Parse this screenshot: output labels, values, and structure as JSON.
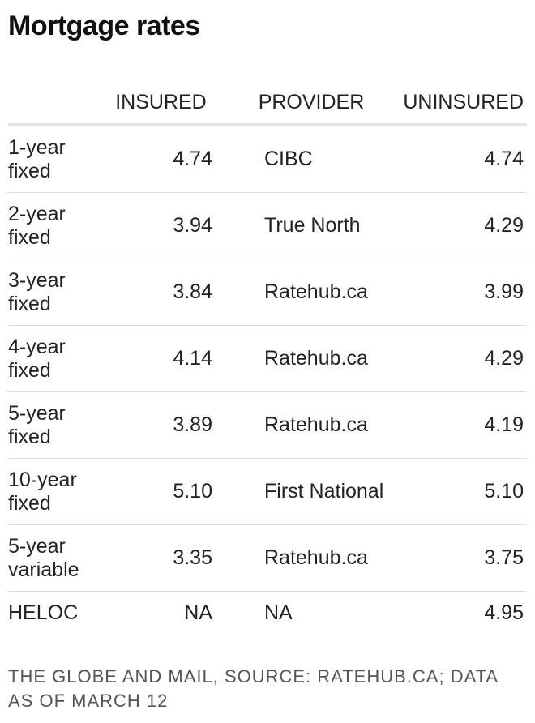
{
  "title": "Mortgage rates",
  "headers": {
    "term": "",
    "insured": "INSURED",
    "provider": "PROVIDER",
    "uninsured": "UNINSURED"
  },
  "rows": [
    {
      "term": "1-year fixed",
      "insured": "4.74",
      "provider": "CIBC",
      "uninsured": "4.74"
    },
    {
      "term": "2-year fixed",
      "insured": "3.94",
      "provider": "True North",
      "uninsured": "4.29"
    },
    {
      "term": "3-year fixed",
      "insured": "3.84",
      "provider": "Ratehub.ca",
      "uninsured": "3.99"
    },
    {
      "term": "4-year fixed",
      "insured": "4.14",
      "provider": "Ratehub.ca",
      "uninsured": "4.29"
    },
    {
      "term": "5-year fixed",
      "insured": "3.89",
      "provider": "Ratehub.ca",
      "uninsured": "4.19"
    },
    {
      "term": "10-year fixed",
      "insured": "5.10",
      "provider": "First National",
      "uninsured": "5.10"
    },
    {
      "term": "5-year variable",
      "insured": "3.35",
      "provider": "Ratehub.ca",
      "uninsured": "3.75"
    },
    {
      "term": "HELOC",
      "insured": "NA",
      "provider": "NA",
      "uninsured": "4.95"
    }
  ],
  "footer": "THE GLOBE AND MAIL, SOURCE: RATEHUB.CA; DATA AS OF MARCH 12"
}
